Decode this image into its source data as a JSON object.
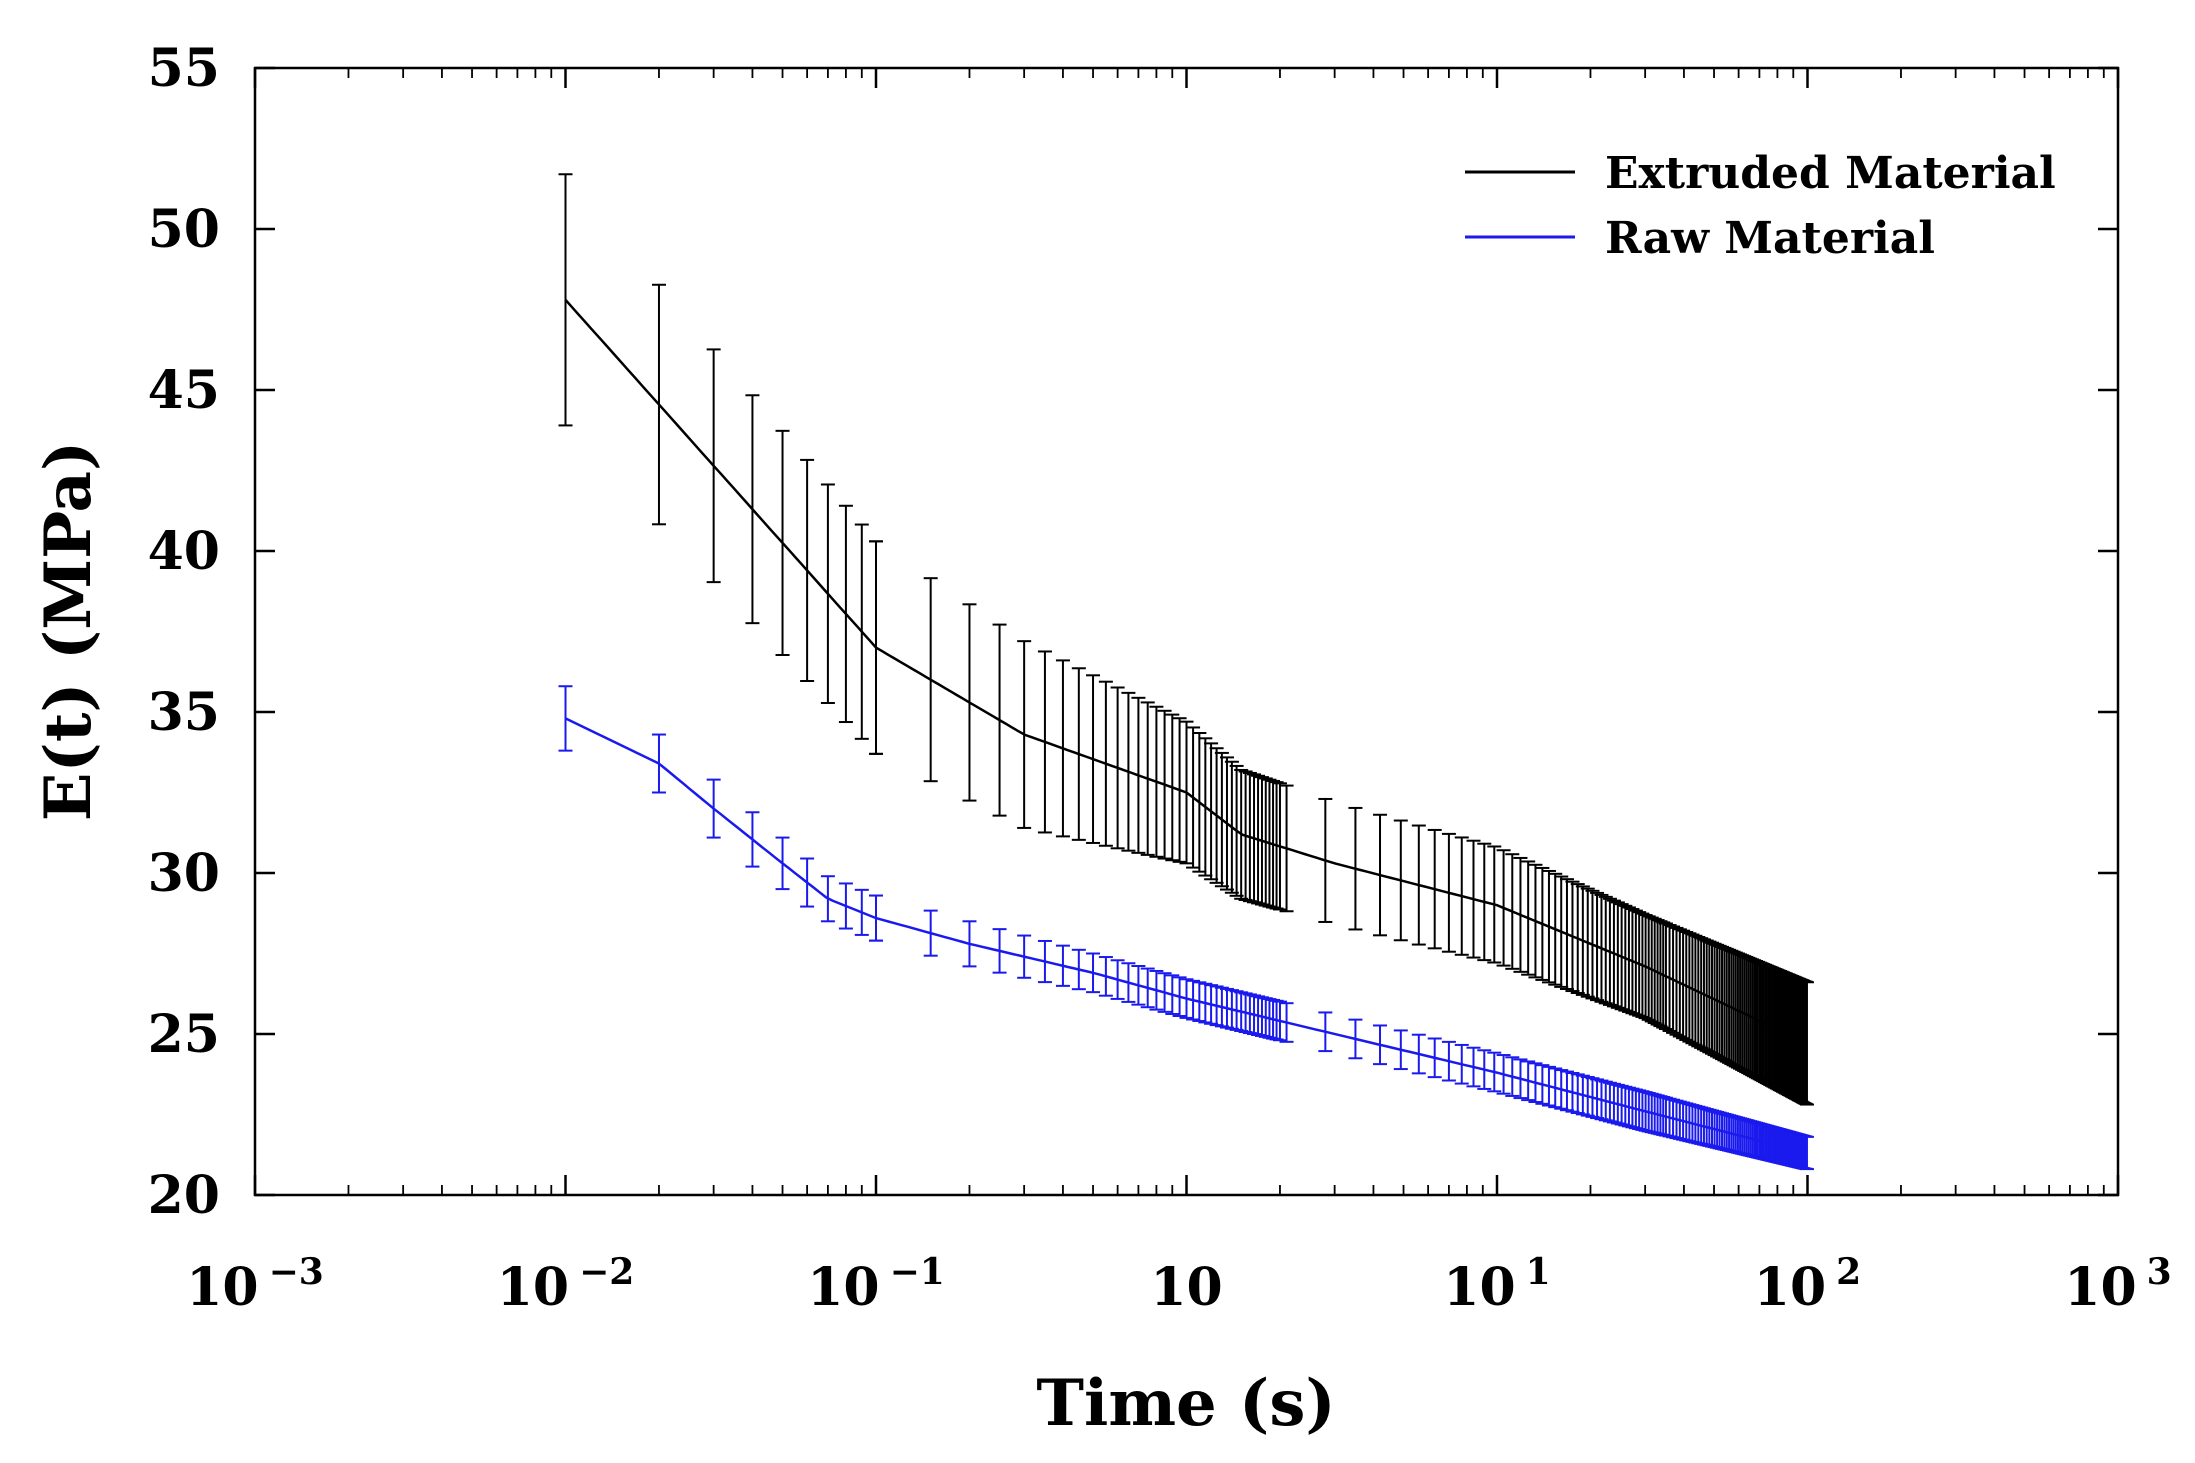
{
  "chart_data": {
    "type": "line",
    "title": "",
    "xlabel": "Time (s)",
    "ylabel": "E(t) (MPa)",
    "xscale": "log",
    "xlim": [
      0.001,
      1000
    ],
    "ylim": [
      20,
      55
    ],
    "grid": false,
    "legend_position": "top-right",
    "y_ticks": [
      "20",
      "25",
      "30",
      "35",
      "40",
      "45",
      "50",
      "55"
    ],
    "x_ticks": [
      {
        "base": "10",
        "exp": "−3"
      },
      {
        "base": "10",
        "exp": "−2"
      },
      {
        "base": "10",
        "exp": "−1"
      },
      {
        "base": "10",
        "exp": ""
      },
      {
        "base": "10",
        "exp": "1"
      },
      {
        "base": "10",
        "exp": "2"
      },
      {
        "base": "10",
        "exp": "3"
      }
    ],
    "series": [
      {
        "name": "Extruded Material",
        "color": "#000000",
        "x": [
          0.01,
          0.1,
          0.3,
          1,
          1.5,
          3,
          10,
          30,
          100
        ],
        "y": [
          47.8,
          37.0,
          34.3,
          32.5,
          31.2,
          30.3,
          29.0,
          27.1,
          24.7
        ],
        "err": [
          3.9,
          3.3,
          2.9,
          2.2,
          2.0,
          1.9,
          1.8,
          1.6,
          1.9
        ]
      },
      {
        "name": "Raw Material",
        "color": "#1a1aee",
        "x": [
          0.01,
          0.02,
          0.03,
          0.05,
          0.07,
          0.1,
          0.2,
          0.5,
          1,
          3,
          10,
          30,
          100
        ],
        "y": [
          34.8,
          33.4,
          32.0,
          30.3,
          29.2,
          28.6,
          27.8,
          26.9,
          26.1,
          25.0,
          23.8,
          22.6,
          21.3
        ],
        "err": [
          1.0,
          0.9,
          0.9,
          0.8,
          0.7,
          0.7,
          0.7,
          0.6,
          0.6,
          0.6,
          0.6,
          0.6,
          0.5
        ]
      }
    ]
  }
}
